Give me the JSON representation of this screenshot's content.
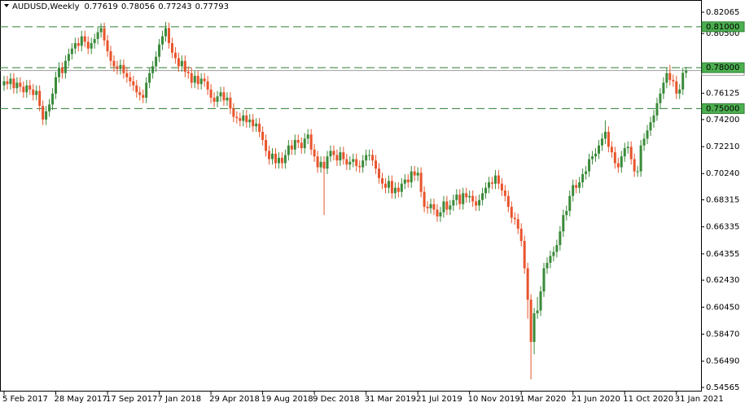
{
  "chart_data": {
    "type": "candlestick",
    "title": "AUDUSD,Weekly",
    "up_color": "#3a8a3a",
    "down_color": "#e8542c",
    "level_color": "#2e7d32",
    "price_line_color": "#9e9e9e",
    "ylim": [
      0.54565,
      0.82065
    ],
    "yticks": [
      0.82065,
      {
        "value": 0.805,
        "label": "0.80500"
      },
      0.76125,
      {
        "value": 0.742,
        "label": "0.74200"
      },
      {
        "value": 0.7221,
        "label": "0.72210"
      },
      {
        "value": 0.7024,
        "label": "0.70240"
      },
      0.68315,
      0.66335,
      0.64355,
      {
        "value": 0.6243,
        "label": "0.62430"
      },
      {
        "value": 0.6045,
        "label": "0.60450"
      },
      {
        "value": 0.5847,
        "label": "0.58470"
      },
      {
        "value": 0.5649,
        "label": "0.56490"
      },
      0.54565
    ],
    "levels": [
      {
        "value": 0.81,
        "label": "0.81000"
      },
      {
        "value": 0.78,
        "label": "0.78000"
      },
      {
        "value": 0.75,
        "label": "0.75000"
      }
    ],
    "categories": [
      "5 Feb 2017",
      null,
      null,
      null,
      null,
      null,
      null,
      null,
      null,
      null,
      null,
      null,
      null,
      null,
      null,
      null,
      "28 May 2017",
      null,
      null,
      null,
      null,
      null,
      null,
      null,
      null,
      null,
      null,
      null,
      null,
      null,
      null,
      null,
      "17 Sep 2017",
      null,
      null,
      null,
      null,
      null,
      null,
      null,
      null,
      null,
      null,
      null,
      null,
      null,
      null,
      null,
      "7 Jan 2018",
      null,
      null,
      null,
      null,
      null,
      null,
      null,
      null,
      null,
      null,
      null,
      null,
      null,
      null,
      null,
      "29 Apr 2018",
      null,
      null,
      null,
      null,
      null,
      null,
      null,
      null,
      null,
      null,
      null,
      null,
      null,
      null,
      null,
      "19 Aug 2018",
      null,
      null,
      null,
      null,
      null,
      null,
      null,
      null,
      null,
      null,
      null,
      null,
      null,
      null,
      null,
      "9 Dec 2018",
      null,
      null,
      null,
      null,
      null,
      null,
      null,
      null,
      null,
      null,
      null,
      null,
      null,
      null,
      null,
      "31 Mar 2019",
      null,
      null,
      null,
      null,
      null,
      null,
      null,
      null,
      null,
      null,
      null,
      null,
      null,
      null,
      null,
      "21 Jul 2019",
      null,
      null,
      null,
      null,
      null,
      null,
      null,
      null,
      null,
      null,
      null,
      null,
      null,
      null,
      null,
      "10 Nov 2019",
      null,
      null,
      null,
      null,
      null,
      null,
      null,
      null,
      null,
      null,
      null,
      null,
      null,
      null,
      null,
      "1 Mar 2020",
      null,
      null,
      null,
      null,
      null,
      null,
      null,
      null,
      null,
      null,
      null,
      null,
      null,
      null,
      null,
      "21 Jun 2020",
      null,
      null,
      null,
      null,
      null,
      null,
      null,
      null,
      null,
      null,
      null,
      null,
      null,
      null,
      null,
      "11 Oct 2020",
      null,
      null,
      null,
      null,
      null,
      null,
      null,
      null,
      null,
      null,
      null,
      null,
      null,
      null,
      null,
      "31 Jan 2021",
      null,
      null,
      null
    ],
    "open": [
      0.767,
      0.77,
      0.768,
      0.772,
      0.765,
      0.769,
      0.766,
      0.762,
      0.767,
      0.764,
      0.76,
      0.763,
      0.752,
      0.742,
      0.748,
      0.753,
      0.761,
      0.773,
      0.78,
      0.776,
      0.785,
      0.79,
      0.794,
      0.798,
      0.796,
      0.803,
      0.799,
      0.794,
      0.798,
      0.801,
      0.806,
      0.809,
      0.8,
      0.792,
      0.785,
      0.781,
      0.779,
      0.782,
      0.776,
      0.773,
      0.77,
      0.767,
      0.762,
      0.76,
      0.758,
      0.769,
      0.776,
      0.781,
      0.788,
      0.797,
      0.803,
      0.809,
      0.798,
      0.791,
      0.787,
      0.781,
      0.785,
      0.777,
      0.776,
      0.769,
      0.774,
      0.768,
      0.772,
      0.77,
      0.764,
      0.758,
      0.755,
      0.759,
      0.762,
      0.756,
      0.758,
      0.75,
      0.744,
      0.743,
      0.741,
      0.745,
      0.74,
      0.742,
      0.737,
      0.739,
      0.733,
      0.727,
      0.719,
      0.713,
      0.717,
      0.71,
      0.714,
      0.71,
      0.716,
      0.723,
      0.72,
      0.727,
      0.725,
      0.721,
      0.728,
      0.731,
      0.72,
      0.715,
      0.707,
      0.711,
      0.706,
      0.715,
      0.719,
      0.716,
      0.712,
      0.718,
      0.713,
      0.709,
      0.711,
      0.713,
      0.708,
      0.707,
      0.712,
      0.716,
      0.716,
      0.712,
      0.706,
      0.699,
      0.695,
      0.692,
      0.697,
      0.688,
      0.692,
      0.689,
      0.695,
      0.698,
      0.696,
      0.704,
      0.701,
      0.703,
      0.689,
      0.678,
      0.677,
      0.68,
      0.676,
      0.671,
      0.674,
      0.682,
      0.676,
      0.679,
      0.683,
      0.687,
      0.68,
      0.688,
      0.685,
      0.686,
      0.682,
      0.679,
      0.683,
      0.688,
      0.692,
      0.696,
      0.695,
      0.701,
      0.695,
      0.69,
      0.686,
      0.678,
      0.67,
      0.669,
      0.662,
      0.653,
      0.633,
      0.61,
      0.579,
      0.6,
      0.602,
      0.616,
      0.633,
      0.637,
      0.642,
      0.645,
      0.65,
      0.66,
      0.672,
      0.675,
      0.686,
      0.694,
      0.692,
      0.696,
      0.702,
      0.704,
      0.713,
      0.715,
      0.717,
      0.723,
      0.728,
      0.733,
      0.722,
      0.718,
      0.71,
      0.707,
      0.715,
      0.721,
      0.722,
      0.713,
      0.704,
      0.704,
      0.723,
      0.728,
      0.734,
      0.74,
      0.745,
      0.754,
      0.761,
      0.769,
      0.776,
      0.771,
      0.77,
      0.761,
      0.764,
      0.77619
    ],
    "high": [
      0.774,
      0.774,
      0.776,
      0.776,
      0.773,
      0.773,
      0.77,
      0.771,
      0.771,
      0.768,
      0.767,
      0.767,
      0.756,
      0.752,
      0.757,
      0.765,
      0.777,
      0.784,
      0.784,
      0.789,
      0.794,
      0.798,
      0.802,
      0.802,
      0.807,
      0.807,
      0.803,
      0.802,
      0.805,
      0.81,
      0.8125,
      0.813,
      0.804,
      0.796,
      0.789,
      0.785,
      0.786,
      0.786,
      0.78,
      0.777,
      0.774,
      0.771,
      0.766,
      0.764,
      0.773,
      0.78,
      0.785,
      0.792,
      0.801,
      0.807,
      0.8136,
      0.813,
      0.802,
      0.795,
      0.791,
      0.789,
      0.789,
      0.781,
      0.78,
      0.778,
      0.778,
      0.776,
      0.776,
      0.774,
      0.768,
      0.762,
      0.763,
      0.766,
      0.766,
      0.762,
      0.762,
      0.754,
      0.748,
      0.747,
      0.749,
      0.749,
      0.746,
      0.746,
      0.743,
      0.743,
      0.737,
      0.731,
      0.723,
      0.721,
      0.721,
      0.718,
      0.718,
      0.72,
      0.727,
      0.727,
      0.731,
      0.731,
      0.729,
      0.732,
      0.735,
      0.735,
      0.724,
      0.719,
      0.715,
      0.715,
      0.719,
      0.723,
      0.723,
      0.72,
      0.722,
      0.722,
      0.717,
      0.715,
      0.717,
      0.717,
      0.712,
      0.716,
      0.72,
      0.72,
      0.72,
      0.716,
      0.71,
      0.703,
      0.699,
      0.701,
      0.701,
      0.696,
      0.696,
      0.699,
      0.702,
      0.702,
      0.708,
      0.708,
      0.707,
      0.707,
      0.693,
      0.682,
      0.684,
      0.684,
      0.68,
      0.678,
      0.686,
      0.686,
      0.683,
      0.687,
      0.691,
      0.691,
      0.692,
      0.692,
      0.69,
      0.69,
      0.686,
      0.687,
      0.692,
      0.696,
      0.7,
      0.7,
      0.705,
      0.705,
      0.699,
      0.694,
      0.69,
      0.682,
      0.674,
      0.673,
      0.666,
      0.657,
      0.637,
      0.614,
      0.604,
      0.612,
      0.62,
      0.637,
      0.641,
      0.646,
      0.649,
      0.654,
      0.664,
      0.676,
      0.679,
      0.69,
      0.698,
      0.698,
      0.7,
      0.706,
      0.708,
      0.717,
      0.719,
      0.721,
      0.727,
      0.732,
      0.7414,
      0.737,
      0.726,
      0.722,
      0.714,
      0.719,
      0.725,
      0.726,
      0.726,
      0.717,
      0.708,
      0.727,
      0.732,
      0.738,
      0.744,
      0.749,
      0.758,
      0.765,
      0.773,
      0.78,
      0.782,
      0.775,
      0.774,
      0.768,
      0.78,
      0.78056
    ],
    "low": [
      0.763,
      0.764,
      0.764,
      0.761,
      0.761,
      0.762,
      0.758,
      0.758,
      0.76,
      0.756,
      0.756,
      0.748,
      0.738,
      0.738,
      0.744,
      0.749,
      0.757,
      0.769,
      0.772,
      0.772,
      0.781,
      0.786,
      0.79,
      0.792,
      0.792,
      0.795,
      0.79,
      0.79,
      0.794,
      0.797,
      0.802,
      0.796,
      0.788,
      0.781,
      0.777,
      0.775,
      0.775,
      0.772,
      0.769,
      0.766,
      0.763,
      0.758,
      0.756,
      0.754,
      0.754,
      0.765,
      0.772,
      0.777,
      0.784,
      0.793,
      0.799,
      0.794,
      0.787,
      0.783,
      0.777,
      0.777,
      0.773,
      0.772,
      0.765,
      0.765,
      0.764,
      0.764,
      0.766,
      0.76,
      0.754,
      0.751,
      0.751,
      0.755,
      0.752,
      0.752,
      0.746,
      0.74,
      0.739,
      0.737,
      0.737,
      0.736,
      0.736,
      0.733,
      0.733,
      0.729,
      0.723,
      0.715,
      0.709,
      0.709,
      0.706,
      0.706,
      0.706,
      0.706,
      0.712,
      0.716,
      0.716,
      0.721,
      0.717,
      0.717,
      0.724,
      0.716,
      0.711,
      0.703,
      0.703,
      0.672,
      0.702,
      0.711,
      0.712,
      0.708,
      0.708,
      0.709,
      0.705,
      0.705,
      0.707,
      0.704,
      0.703,
      0.703,
      0.708,
      0.712,
      0.708,
      0.702,
      0.695,
      0.691,
      0.688,
      0.688,
      0.684,
      0.684,
      0.685,
      0.685,
      0.691,
      0.692,
      0.692,
      0.697,
      0.697,
      0.685,
      0.674,
      0.673,
      0.673,
      0.672,
      0.667,
      0.667,
      0.67,
      0.672,
      0.672,
      0.675,
      0.679,
      0.676,
      0.676,
      0.681,
      0.681,
      0.678,
      0.675,
      0.675,
      0.679,
      0.684,
      0.688,
      0.691,
      0.691,
      0.691,
      0.686,
      0.682,
      0.674,
      0.666,
      0.665,
      0.658,
      0.649,
      0.629,
      0.596,
      0.5516,
      0.57,
      0.596,
      0.598,
      0.612,
      0.629,
      0.633,
      0.638,
      0.641,
      0.646,
      0.656,
      0.668,
      0.671,
      0.682,
      0.688,
      0.688,
      0.692,
      0.698,
      0.7,
      0.709,
      0.711,
      0.713,
      0.719,
      0.724,
      0.718,
      0.714,
      0.706,
      0.703,
      0.703,
      0.711,
      0.717,
      0.709,
      0.7,
      0.7,
      0.7,
      0.719,
      0.724,
      0.73,
      0.736,
      0.741,
      0.75,
      0.757,
      0.765,
      0.767,
      0.766,
      0.757,
      0.757,
      0.76,
      0.77243
    ],
    "close": [
      0.77,
      0.768,
      0.772,
      0.765,
      0.769,
      0.766,
      0.762,
      0.767,
      0.764,
      0.76,
      0.763,
      0.752,
      0.742,
      0.748,
      0.753,
      0.761,
      0.773,
      0.78,
      0.776,
      0.785,
      0.79,
      0.794,
      0.798,
      0.796,
      0.803,
      0.799,
      0.794,
      0.798,
      0.801,
      0.806,
      0.809,
      0.8,
      0.792,
      0.785,
      0.781,
      0.779,
      0.782,
      0.776,
      0.773,
      0.77,
      0.767,
      0.762,
      0.76,
      0.758,
      0.769,
      0.776,
      0.781,
      0.788,
      0.797,
      0.803,
      0.809,
      0.798,
      0.791,
      0.787,
      0.781,
      0.785,
      0.777,
      0.776,
      0.769,
      0.774,
      0.768,
      0.772,
      0.77,
      0.764,
      0.758,
      0.755,
      0.759,
      0.762,
      0.756,
      0.758,
      0.75,
      0.744,
      0.743,
      0.741,
      0.745,
      0.74,
      0.742,
      0.737,
      0.739,
      0.733,
      0.727,
      0.719,
      0.713,
      0.717,
      0.71,
      0.714,
      0.71,
      0.716,
      0.723,
      0.72,
      0.727,
      0.725,
      0.721,
      0.728,
      0.731,
      0.72,
      0.715,
      0.707,
      0.711,
      0.706,
      0.715,
      0.719,
      0.716,
      0.712,
      0.718,
      0.713,
      0.709,
      0.711,
      0.713,
      0.708,
      0.707,
      0.712,
      0.716,
      0.716,
      0.712,
      0.706,
      0.699,
      0.695,
      0.692,
      0.697,
      0.688,
      0.692,
      0.689,
      0.695,
      0.698,
      0.696,
      0.704,
      0.701,
      0.703,
      0.689,
      0.678,
      0.677,
      0.68,
      0.676,
      0.671,
      0.674,
      0.682,
      0.676,
      0.679,
      0.683,
      0.687,
      0.68,
      0.688,
      0.685,
      0.686,
      0.682,
      0.679,
      0.683,
      0.688,
      0.692,
      0.696,
      0.695,
      0.701,
      0.695,
      0.69,
      0.686,
      0.678,
      0.67,
      0.669,
      0.662,
      0.653,
      0.633,
      0.61,
      0.579,
      0.6,
      0.602,
      0.616,
      0.633,
      0.637,
      0.642,
      0.645,
      0.65,
      0.66,
      0.672,
      0.675,
      0.686,
      0.694,
      0.692,
      0.696,
      0.702,
      0.704,
      0.713,
      0.715,
      0.717,
      0.723,
      0.728,
      0.733,
      0.722,
      0.718,
      0.71,
      0.707,
      0.715,
      0.721,
      0.722,
      0.713,
      0.704,
      0.704,
      0.723,
      0.728,
      0.734,
      0.74,
      0.745,
      0.754,
      0.761,
      0.769,
      0.776,
      0.771,
      0.77,
      0.761,
      0.764,
      0.77619,
      0.77793
    ]
  }
}
